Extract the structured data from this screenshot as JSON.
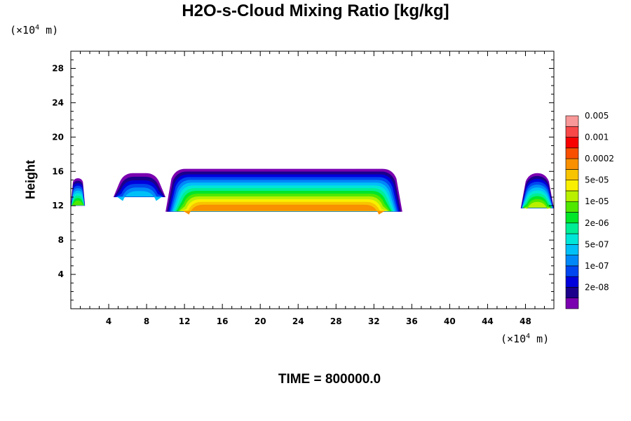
{
  "chart_data": {
    "type": "contour",
    "title": "H2O-s-Cloud Mixing Ratio [kg/kg]",
    "ylabel": "Height",
    "x_unit_prefix": "(×10",
    "x_unit_exp": "4",
    "x_unit_suffix": " m)",
    "y_unit_prefix": "(×10",
    "y_unit_exp": "4",
    "y_unit_suffix": " m)",
    "xlim": [
      0,
      51
    ],
    "ylim": [
      0,
      30
    ],
    "x_ticks": [
      4,
      8,
      12,
      16,
      20,
      24,
      28,
      32,
      36,
      40,
      44,
      48
    ],
    "y_ticks": [
      4,
      8,
      12,
      16,
      20,
      24,
      28
    ],
    "footer": "TIME = 800000.0",
    "colorbar": {
      "levels": [
        {
          "color": "#7b00b0"
        },
        {
          "color": "#1a008a"
        },
        {
          "color": "#0000dc"
        },
        {
          "color": "#0046f0"
        },
        {
          "color": "#0088f8"
        },
        {
          "color": "#00c0f8"
        },
        {
          "color": "#00e6d8"
        },
        {
          "color": "#00ee96"
        },
        {
          "color": "#00e628"
        },
        {
          "color": "#50e800"
        },
        {
          "color": "#b8f000"
        },
        {
          "color": "#f8f000"
        },
        {
          "color": "#f8c400"
        },
        {
          "color": "#f89000"
        },
        {
          "color": "#f85000"
        },
        {
          "color": "#f80000"
        },
        {
          "color": "#f84848"
        },
        {
          "color": "#f89898"
        }
      ],
      "labels": [
        {
          "text": "2e-08",
          "after_level": 1
        },
        {
          "text": "1e-07",
          "after_level": 3
        },
        {
          "text": "5e-07",
          "after_level": 5
        },
        {
          "text": "2e-06",
          "after_level": 7
        },
        {
          "text": "1e-05",
          "after_level": 9
        },
        {
          "text": "5e-05",
          "after_level": 11
        },
        {
          "text": "0.0002",
          "after_level": 13
        },
        {
          "text": "0.001",
          "after_level": 15
        },
        {
          "text": "0.005",
          "after_level": 17
        }
      ]
    },
    "cloud_regions": [
      {
        "x_range": [
          0,
          1.5
        ],
        "y_range": [
          12.0,
          15.2
        ],
        "max_level": 9
      },
      {
        "x_range": [
          4.5,
          10.0
        ],
        "y_range": [
          13.0,
          15.8
        ],
        "max_level": 5
      },
      {
        "x_range": [
          10.0,
          35.0
        ],
        "y_range": [
          11.3,
          16.3
        ],
        "max_level": 13
      },
      {
        "x_range": [
          47.5,
          51.0
        ],
        "y_range": [
          11.7,
          15.8
        ],
        "max_level": 10
      }
    ]
  }
}
